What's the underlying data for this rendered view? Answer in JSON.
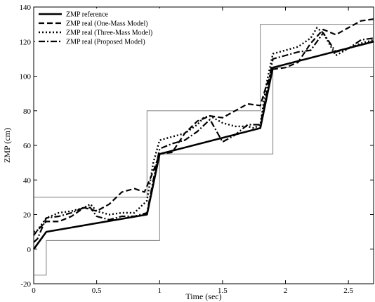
{
  "chart_data": {
    "type": "line",
    "xlabel": "Time (sec)",
    "ylabel": "ZMP (cm)",
    "xlim": [
      0,
      2.7
    ],
    "ylim": [
      -20,
      140
    ],
    "xticks": [
      0,
      0.5,
      1,
      1.5,
      2,
      2.5
    ],
    "yticks": [
      -20,
      0,
      20,
      40,
      60,
      80,
      100,
      120,
      140
    ],
    "xtick_labels": [
      "0",
      "0.5",
      "1",
      "1.5",
      "2",
      "2.5"
    ],
    "ytick_labels": [
      "-20",
      "0",
      "20",
      "40",
      "60",
      "80",
      "100",
      "120",
      "140"
    ],
    "legend_position": "top-left",
    "grid": false,
    "boundaries": [
      {
        "x": [
          0,
          0.1,
          0.1,
          1.0,
          1.0,
          1.9,
          1.9,
          2.7
        ],
        "y": [
          -15,
          -15,
          5,
          5,
          55,
          55,
          105,
          105
        ]
      },
      {
        "x": [
          0,
          0.9,
          0.9,
          1.8,
          1.8,
          2.7
        ],
        "y": [
          30,
          30,
          80,
          80,
          130,
          130
        ]
      }
    ],
    "series": [
      {
        "name": "ZMP reference",
        "style": "solid",
        "color": "#000000",
        "x": [
          0,
          0.1,
          0.9,
          1.0,
          1.8,
          1.9,
          2.7
        ],
        "y": [
          0,
          10,
          20,
          55,
          70,
          105,
          120
        ]
      },
      {
        "name": "ZMP real (One-Mass Model)",
        "style": "dashed",
        "color": "#000000",
        "x": [
          0,
          0.03,
          0.1,
          0.2,
          0.3,
          0.4,
          0.5,
          0.6,
          0.7,
          0.8,
          0.88,
          0.95,
          1.0,
          1.1,
          1.2,
          1.3,
          1.4,
          1.5,
          1.6,
          1.7,
          1.8,
          1.85,
          1.9,
          2.0,
          2.1,
          2.2,
          2.3,
          2.4,
          2.5,
          2.6,
          2.7
        ],
        "y": [
          8,
          11,
          16,
          16,
          19,
          24,
          22,
          26,
          33,
          35,
          33,
          45,
          55,
          56,
          67,
          74,
          77,
          76,
          80,
          84,
          83,
          95,
          104,
          105,
          108,
          119,
          127,
          124,
          128,
          132,
          133
        ]
      },
      {
        "name": "ZMP real (Three-Mass Model)",
        "style": "dotted",
        "color": "#000000",
        "x": [
          0,
          0.03,
          0.1,
          0.2,
          0.3,
          0.4,
          0.45,
          0.5,
          0.6,
          0.7,
          0.8,
          0.9,
          0.95,
          1.0,
          1.1,
          1.2,
          1.3,
          1.35,
          1.4,
          1.5,
          1.6,
          1.7,
          1.75,
          1.8,
          1.85,
          1.9,
          2.0,
          2.1,
          2.2,
          2.25,
          2.3,
          2.4,
          2.5,
          2.6,
          2.7
        ],
        "y": [
          10,
          11,
          18,
          21,
          22,
          24,
          26,
          22,
          20,
          21,
          21,
          28,
          50,
          63,
          65,
          67,
          72,
          76,
          77,
          73,
          71,
          71,
          70,
          72,
          96,
          113,
          115,
          117,
          122,
          128,
          125,
          112,
          116,
          119,
          121
        ]
      },
      {
        "name": "ZMP real (Proposed Model)",
        "style": "dashdot",
        "color": "#000000",
        "x": [
          0,
          0.03,
          0.1,
          0.2,
          0.3,
          0.4,
          0.45,
          0.5,
          0.6,
          0.7,
          0.8,
          0.9,
          0.95,
          1.0,
          1.1,
          1.2,
          1.3,
          1.4,
          1.5,
          1.6,
          1.7,
          1.8,
          1.85,
          1.9,
          2.0,
          2.1,
          2.2,
          2.3,
          2.4,
          2.5,
          2.6,
          2.7
        ],
        "y": [
          4,
          6,
          18,
          19,
          21,
          24,
          24,
          19,
          17,
          19,
          19,
          21,
          40,
          58,
          61,
          63,
          68,
          75,
          62,
          66,
          72,
          72,
          90,
          110,
          112,
          114,
          115,
          125,
          114,
          116,
          121,
          122
        ]
      }
    ]
  }
}
